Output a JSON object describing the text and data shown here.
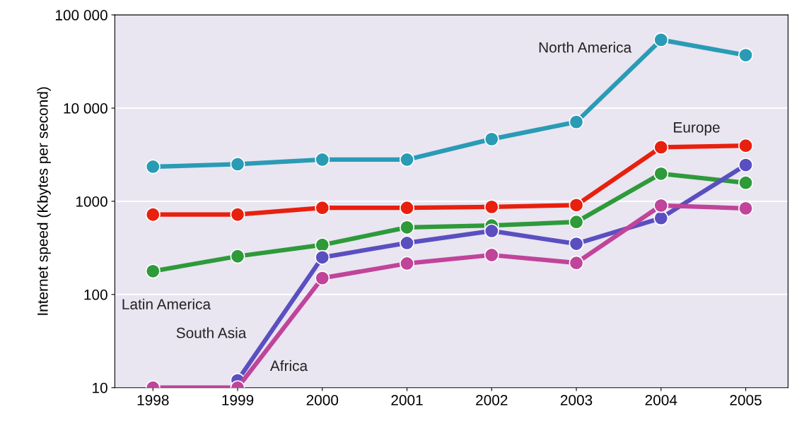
{
  "chart_data": {
    "type": "line",
    "ylabel": "Internet speed (Kbytes per second)",
    "categories": [
      "1998",
      "1999",
      "2000",
      "2001",
      "2002",
      "2003",
      "2004",
      "2005"
    ],
    "series": [
      {
        "name": "North America",
        "color": "#2a9bb5",
        "values": [
          2350,
          2500,
          2800,
          2800,
          4650,
          7100,
          54000,
          37000
        ]
      },
      {
        "name": "Europe",
        "color": "#e8200e",
        "values": [
          720,
          720,
          850,
          850,
          870,
          910,
          3800,
          3950
        ]
      },
      {
        "name": "Latin America",
        "color": "#2e9a3a",
        "values": [
          178,
          257,
          340,
          525,
          550,
          600,
          1980,
          1580
        ]
      },
      {
        "name": "South Asia",
        "color": "#5a4fc0",
        "values": [
          null,
          12,
          250,
          357,
          480,
          350,
          660,
          2450
        ]
      },
      {
        "name": "Africa",
        "color": "#c0449a",
        "values": [
          10,
          10,
          150,
          215,
          265,
          218,
          900,
          840
        ]
      }
    ],
    "log": "y",
    "ylim": [
      10,
      100000
    ],
    "yticks": [
      10,
      100,
      1000,
      {
        "value": 10000,
        "label": "10 000"
      },
      {
        "value": 100000,
        "label": "100 000"
      }
    ],
    "grid": "y",
    "marker": "circle",
    "line_style": "solid",
    "legend": false
  }
}
